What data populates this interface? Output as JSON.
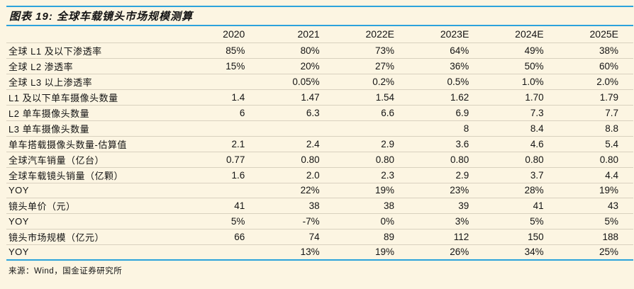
{
  "colors": {
    "background": "#FCF5E2",
    "accent_blue": "#2CA3DB",
    "row_rule": "#D9D1BF",
    "text": "#141414"
  },
  "chart_data": {
    "type": "table",
    "title": "图表 19: 全球车载镜头市场规模测算",
    "columns": [
      "2020",
      "2021",
      "2022E",
      "2023E",
      "2024E",
      "2025E"
    ],
    "rows": [
      {
        "label": "全球 L1 及以下渗透率",
        "values": [
          "85%",
          "80%",
          "73%",
          "64%",
          "49%",
          "38%"
        ]
      },
      {
        "label": "全球 L2 渗透率",
        "values": [
          "15%",
          "20%",
          "27%",
          "36%",
          "50%",
          "60%"
        ]
      },
      {
        "label": "全球 L3 以上渗透率",
        "values": [
          "",
          "0.05%",
          "0.2%",
          "0.5%",
          "1.0%",
          "2.0%"
        ]
      },
      {
        "label": "L1 及以下单车摄像头数量",
        "values": [
          "1.4",
          "1.47",
          "1.54",
          "1.62",
          "1.70",
          "1.79"
        ]
      },
      {
        "label": "L2 单车摄像头数量",
        "values": [
          "6",
          "6.3",
          "6.6",
          "6.9",
          "7.3",
          "7.7"
        ]
      },
      {
        "label": "L3 单车摄像头数量",
        "values": [
          "",
          "",
          "",
          "8",
          "8.4",
          "8.8"
        ]
      },
      {
        "label": "单车搭载摄像头数量-估算值",
        "values": [
          "2.1",
          "2.4",
          "2.9",
          "3.6",
          "4.6",
          "5.4"
        ]
      },
      {
        "label": "全球汽车销量（亿台）",
        "values": [
          "0.77",
          "0.80",
          "0.80",
          "0.80",
          "0.80",
          "0.80"
        ]
      },
      {
        "label": "全球车载镜头销量（亿颗）",
        "values": [
          "1.6",
          "2.0",
          "2.3",
          "2.9",
          "3.7",
          "4.4"
        ]
      },
      {
        "label": "YOY",
        "values": [
          "",
          "22%",
          "19%",
          "23%",
          "28%",
          "19%"
        ]
      },
      {
        "label": "镜头单价（元）",
        "values": [
          "41",
          "38",
          "38",
          "39",
          "41",
          "43"
        ]
      },
      {
        "label": "YOY",
        "values": [
          "5%",
          "-7%",
          "0%",
          "3%",
          "5%",
          "5%"
        ]
      },
      {
        "label": "镜头市场规模（亿元）",
        "values": [
          "66",
          "74",
          "89",
          "112",
          "150",
          "188"
        ]
      },
      {
        "label": "YOY",
        "values": [
          "",
          "13%",
          "19%",
          "26%",
          "34%",
          "25%"
        ]
      }
    ],
    "source": "来源：Wind，国金证券研究所",
    "layout": {
      "legend": false,
      "grid": "horizontal-rules",
      "value_align": "right"
    }
  }
}
